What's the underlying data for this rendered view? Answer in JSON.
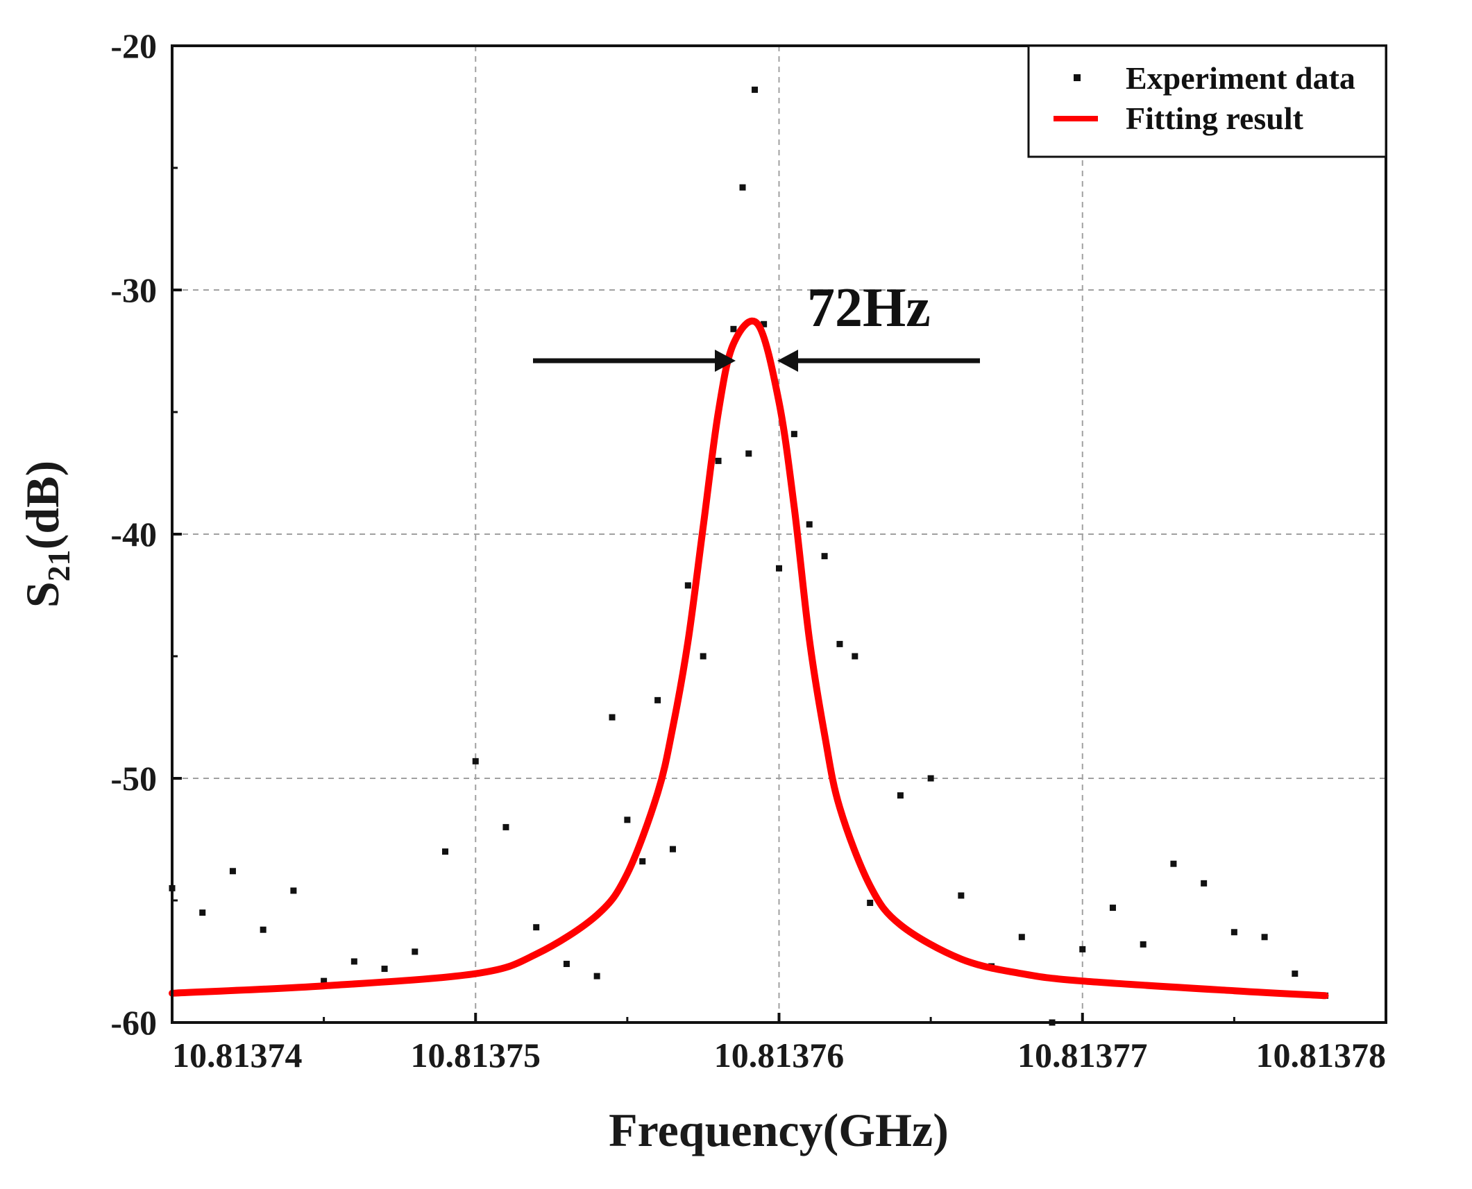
{
  "chart_data": {
    "type": "scatter",
    "title": "",
    "xlabel": "Frequency(GHz)",
    "ylabel_main": "S",
    "ylabel_sub": "21",
    "ylabel_unit": "(dB)",
    "xlim": [
      10.81374,
      10.81378
    ],
    "ylim": [
      -60,
      -20
    ],
    "xticks": [
      10.81374,
      10.81375,
      10.81376,
      10.81377,
      10.81378
    ],
    "xtick_labels": [
      "10.81374",
      "10.81375",
      "10.81376",
      "10.81377",
      "10.81378"
    ],
    "yticks": [
      -60,
      -50,
      -40,
      -30,
      -20
    ],
    "ytick_labels": [
      "-60",
      "-50",
      "-40",
      "-30",
      "-20"
    ],
    "grid": true,
    "legend_position": "top-right",
    "series": [
      {
        "name": "Experiment data",
        "kind": "scatter",
        "color": "#111111",
        "x": [
          10.81374,
          10.813741,
          10.813742,
          10.813743,
          10.813744,
          10.813745,
          10.813746,
          10.813747,
          10.813748,
          10.813749,
          10.81375,
          10.813751,
          10.813752,
          10.813753,
          10.813754,
          10.8137545,
          10.813755,
          10.8137555,
          10.813756,
          10.8137565,
          10.813757,
          10.8137575,
          10.813758,
          10.8137585,
          10.8137588,
          10.813759,
          10.8137592,
          10.8137595,
          10.81376,
          10.8137605,
          10.813761,
          10.8137615,
          10.813762,
          10.8137625,
          10.813763,
          10.813764,
          10.813765,
          10.813766,
          10.813767,
          10.813768,
          10.813769,
          10.81377,
          10.813771,
          10.813772,
          10.813773,
          10.813774,
          10.813775,
          10.813776,
          10.813777,
          10.813778
        ],
        "y": [
          -54.5,
          -55.5,
          -53.8,
          -56.2,
          -54.6,
          -58.3,
          -57.5,
          -57.8,
          -57.1,
          -53.0,
          -49.3,
          -52.0,
          -56.1,
          -57.6,
          -58.1,
          -47.5,
          -51.7,
          -53.4,
          -46.8,
          -52.9,
          -42.1,
          -45.0,
          -37.0,
          -31.6,
          -25.8,
          -36.7,
          -21.8,
          -31.4,
          -41.4,
          -35.9,
          -39.6,
          -40.9,
          -44.5,
          -45.0,
          -55.1,
          -50.7,
          -50.0,
          -54.8,
          -57.7,
          -56.5,
          -60.0,
          -57.0,
          -55.3,
          -56.8,
          -53.5,
          -54.3,
          -56.3,
          -56.5,
          -58.0,
          -58.9
        ]
      },
      {
        "name": "Fitting result",
        "kind": "line",
        "color": "#ff0000",
        "x": [
          10.81374,
          10.813745,
          10.81375,
          10.813752,
          10.813754,
          10.813755,
          10.813756,
          10.8137565,
          10.813757,
          10.8137575,
          10.813758,
          10.8137585,
          10.8137593,
          10.81376,
          10.8137605,
          10.813761,
          10.8137615,
          10.813762,
          10.813763,
          10.813764,
          10.813766,
          10.813768,
          10.81377,
          10.813775,
          10.813778
        ],
        "y": [
          -58.8,
          -58.5,
          -58.0,
          -57.2,
          -55.6,
          -53.9,
          -50.6,
          -47.9,
          -44.4,
          -39.7,
          -35.0,
          -32.2,
          -31.4,
          -34.6,
          -38.9,
          -44.3,
          -48.2,
          -51.2,
          -54.4,
          -56.0,
          -57.4,
          -58.0,
          -58.3,
          -58.7,
          -58.9
        ]
      }
    ],
    "annotations": [
      {
        "text": "72Hz",
        "x": 10.8137595,
        "y": -31.6,
        "note": "linewidth arrows around peak"
      }
    ]
  }
}
